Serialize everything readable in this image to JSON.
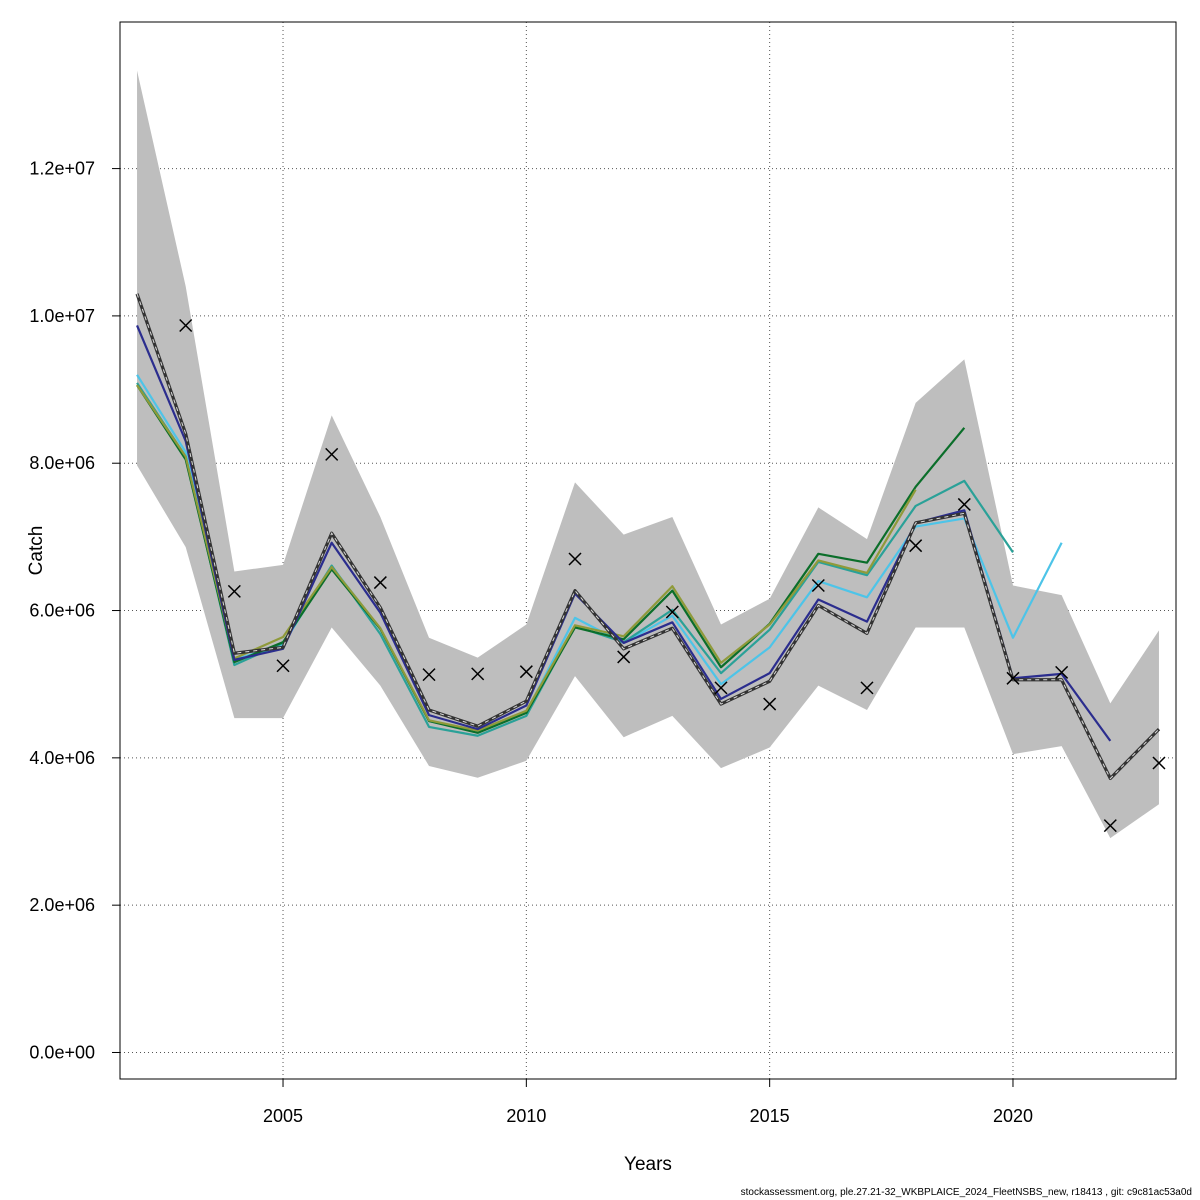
{
  "footer_text": "stockassessment.org, ple.27.21-32_WKBPLAICE_2024_FleetNSBS_new, r18413 , git: c9c81ac53a0d",
  "chart_data": {
    "type": "line",
    "title": "",
    "xlabel": "Years",
    "ylabel": "Catch",
    "xlim": [
      2001.65,
      2023.35
    ],
    "ylim": [
      -360000,
      13990000
    ],
    "x_ticks": [
      2005,
      2010,
      2015,
      2020
    ],
    "x_tick_labels": [
      "2005",
      "2010",
      "2015",
      "2020"
    ],
    "y_ticks": [
      0,
      2000000,
      4000000,
      6000000,
      8000000,
      10000000,
      12000000
    ],
    "y_tick_labels": [
      "0.0e+00",
      "2.0e+06",
      "4.0e+06",
      "6.0e+06",
      "8.0e+06",
      "1.0e+07",
      "1.2e+07"
    ],
    "grid": true,
    "colors": {
      "band": "#bebebe",
      "main_line": "#333333",
      "observed": "#000000",
      "grid": "#555555"
    },
    "confidence_band": {
      "x": [
        2002,
        2003,
        2004,
        2005,
        2006,
        2007,
        2008,
        2009,
        2010,
        2011,
        2012,
        2013,
        2014,
        2015,
        2016,
        2017,
        2018,
        2019,
        2020,
        2021,
        2022,
        2023
      ],
      "upper": [
        13330000,
        10400000,
        6530000,
        6620000,
        8650000,
        7270000,
        5630000,
        5360000,
        5810000,
        7740000,
        7030000,
        7270000,
        5810000,
        6160000,
        7400000,
        6970000,
        8820000,
        9410000,
        6340000,
        6210000,
        4740000,
        5730000
      ],
      "lower": [
        7970000,
        6860000,
        4540000,
        4540000,
        5770000,
        4980000,
        3890000,
        3730000,
        3960000,
        5110000,
        4280000,
        4570000,
        3860000,
        4140000,
        4980000,
        4650000,
        5770000,
        5770000,
        4050000,
        4160000,
        2910000,
        3370000
      ]
    },
    "main_estimate": {
      "x": [
        2002,
        2003,
        2004,
        2005,
        2006,
        2007,
        2008,
        2009,
        2010,
        2011,
        2012,
        2013,
        2014,
        2015,
        2016,
        2017,
        2018,
        2019,
        2020,
        2021,
        2022,
        2023
      ],
      "values": [
        10300000,
        8400000,
        5420000,
        5500000,
        7050000,
        6040000,
        4650000,
        4430000,
        4770000,
        6270000,
        5480000,
        5760000,
        4730000,
        5040000,
        6070000,
        5690000,
        7190000,
        7320000,
        5060000,
        5060000,
        3720000,
        4390000
      ]
    },
    "observed": {
      "x": [
        2003,
        2004,
        2005,
        2006,
        2007,
        2008,
        2009,
        2010,
        2011,
        2012,
        2013,
        2014,
        2015,
        2016,
        2017,
        2018,
        2019,
        2020,
        2021,
        2022,
        2023
      ],
      "values": [
        9870000,
        6260000,
        5250000,
        8120000,
        6380000,
        5130000,
        5140000,
        5170000,
        6700000,
        5370000,
        5980000,
        4950000,
        4730000,
        6340000,
        4950000,
        6880000,
        7440000,
        5080000,
        5160000,
        3080000,
        3930000
      ]
    },
    "series": [
      {
        "color": "#4dc4e8",
        "x": [
          2002,
          2003,
          2004,
          2005,
          2006,
          2007,
          2008,
          2009,
          2010,
          2011,
          2012,
          2013,
          2014,
          2015,
          2016,
          2017,
          2018,
          2019,
          2020,
          2021
        ],
        "values": [
          9200000,
          8150000,
          5330000,
          5540000,
          6600000,
          5750000,
          4500000,
          4350000,
          4620000,
          5900000,
          5560000,
          5930000,
          5000000,
          5500000,
          6400000,
          6180000,
          7140000,
          7250000,
          5630000,
          6920000
        ]
      },
      {
        "color": "#2aa198",
        "x": [
          2002,
          2003,
          2004,
          2005,
          2006,
          2007,
          2008,
          2009,
          2010,
          2011,
          2012,
          2013,
          2014,
          2015,
          2016,
          2017,
          2018,
          2019,
          2020
        ],
        "values": [
          9090000,
          8090000,
          5260000,
          5560000,
          6610000,
          5680000,
          4420000,
          4300000,
          4570000,
          5790000,
          5570000,
          6010000,
          5150000,
          5740000,
          6660000,
          6480000,
          7420000,
          7760000,
          6790000
        ]
      },
      {
        "color": "#0b6e2a",
        "x": [
          2002,
          2003,
          2004,
          2005,
          2006,
          2007,
          2008,
          2009,
          2010,
          2011,
          2012,
          2013,
          2014,
          2015,
          2016,
          2017,
          2018,
          2019
        ],
        "values": [
          9060000,
          8050000,
          5300000,
          5570000,
          6560000,
          5750000,
          4500000,
          4340000,
          4610000,
          5770000,
          5610000,
          6270000,
          5230000,
          5820000,
          6770000,
          6650000,
          7680000,
          8480000
        ]
      },
      {
        "color": "#8f9a3a",
        "x": [
          2002,
          2003,
          2004,
          2005,
          2006,
          2007,
          2008,
          2009,
          2010,
          2011,
          2012,
          2013,
          2014,
          2015,
          2016,
          2017,
          2018
        ],
        "values": [
          9060000,
          8090000,
          5350000,
          5640000,
          6590000,
          5760000,
          4510000,
          4370000,
          4640000,
          5800000,
          5650000,
          6330000,
          5290000,
          5810000,
          6680000,
          6510000,
          7640000
        ]
      },
      {
        "color": "#2b2d8e",
        "x": [
          2002,
          2003,
          2004,
          2005,
          2006,
          2007,
          2008,
          2009,
          2010,
          2011,
          2012,
          2013,
          2014,
          2015,
          2016,
          2017,
          2018,
          2019,
          2020,
          2021,
          2022
        ],
        "values": [
          9870000,
          8300000,
          5330000,
          5480000,
          6920000,
          5970000,
          4580000,
          4390000,
          4710000,
          6230000,
          5560000,
          5840000,
          4800000,
          5150000,
          6150000,
          5850000,
          7190000,
          7360000,
          5080000,
          5140000,
          4230000
        ]
      }
    ]
  }
}
